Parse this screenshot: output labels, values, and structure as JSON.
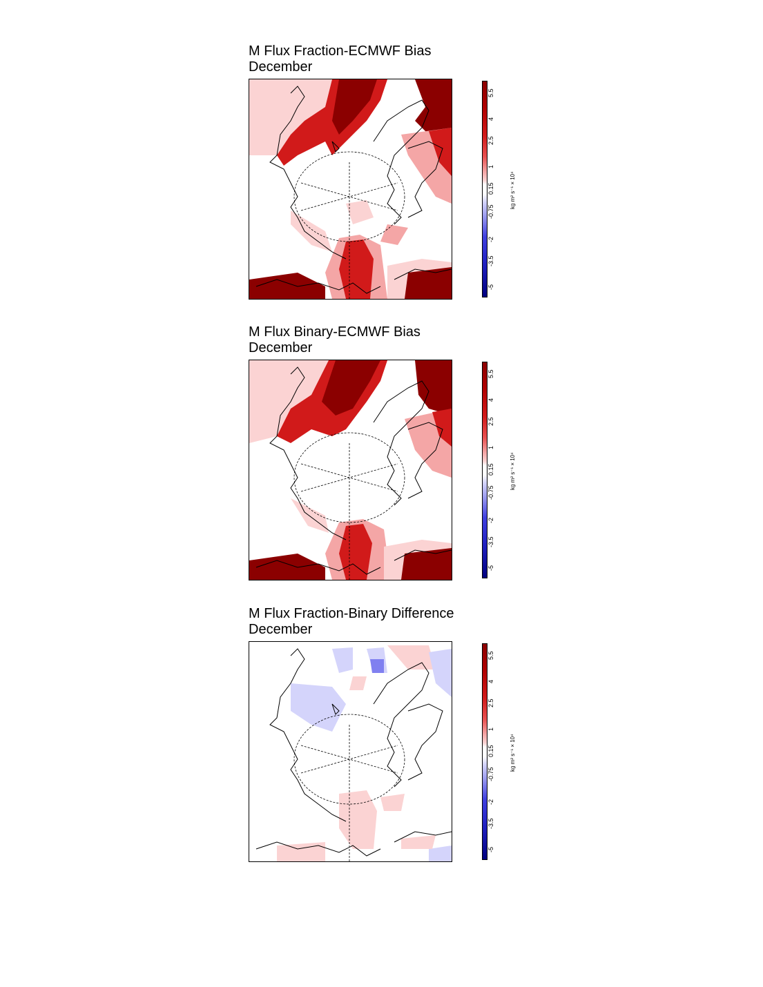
{
  "panels": [
    {
      "id": "fraction-ecmwf",
      "title": "M Flux Fraction-ECMWF Bias",
      "subtitle": "December",
      "field": "bias"
    },
    {
      "id": "binary-ecmwf",
      "title": "M Flux Binary-ECMWF Bias",
      "subtitle": "December",
      "field": "bias"
    },
    {
      "id": "fraction-binary",
      "title": "M Flux Fraction-Binary Difference",
      "subtitle": "December",
      "field": "difference"
    }
  ],
  "colorbar": {
    "tick_labels": [
      "5.5",
      "4",
      "2.5",
      "1",
      "0.15",
      "-0.75",
      "-2",
      "-3.5",
      "-5"
    ],
    "unit_label": "kg m² s⁻¹ × 10⁴",
    "colors": {
      "dark_red": "#8b0000",
      "red": "#d11a1a",
      "light_red": "#f4a6a6",
      "pale_red": "#fbd3d3",
      "white": "#ffffff",
      "pale_blue": "#d4d4fb",
      "blue": "#4040e0",
      "dark_blue": "#000080"
    }
  }
}
